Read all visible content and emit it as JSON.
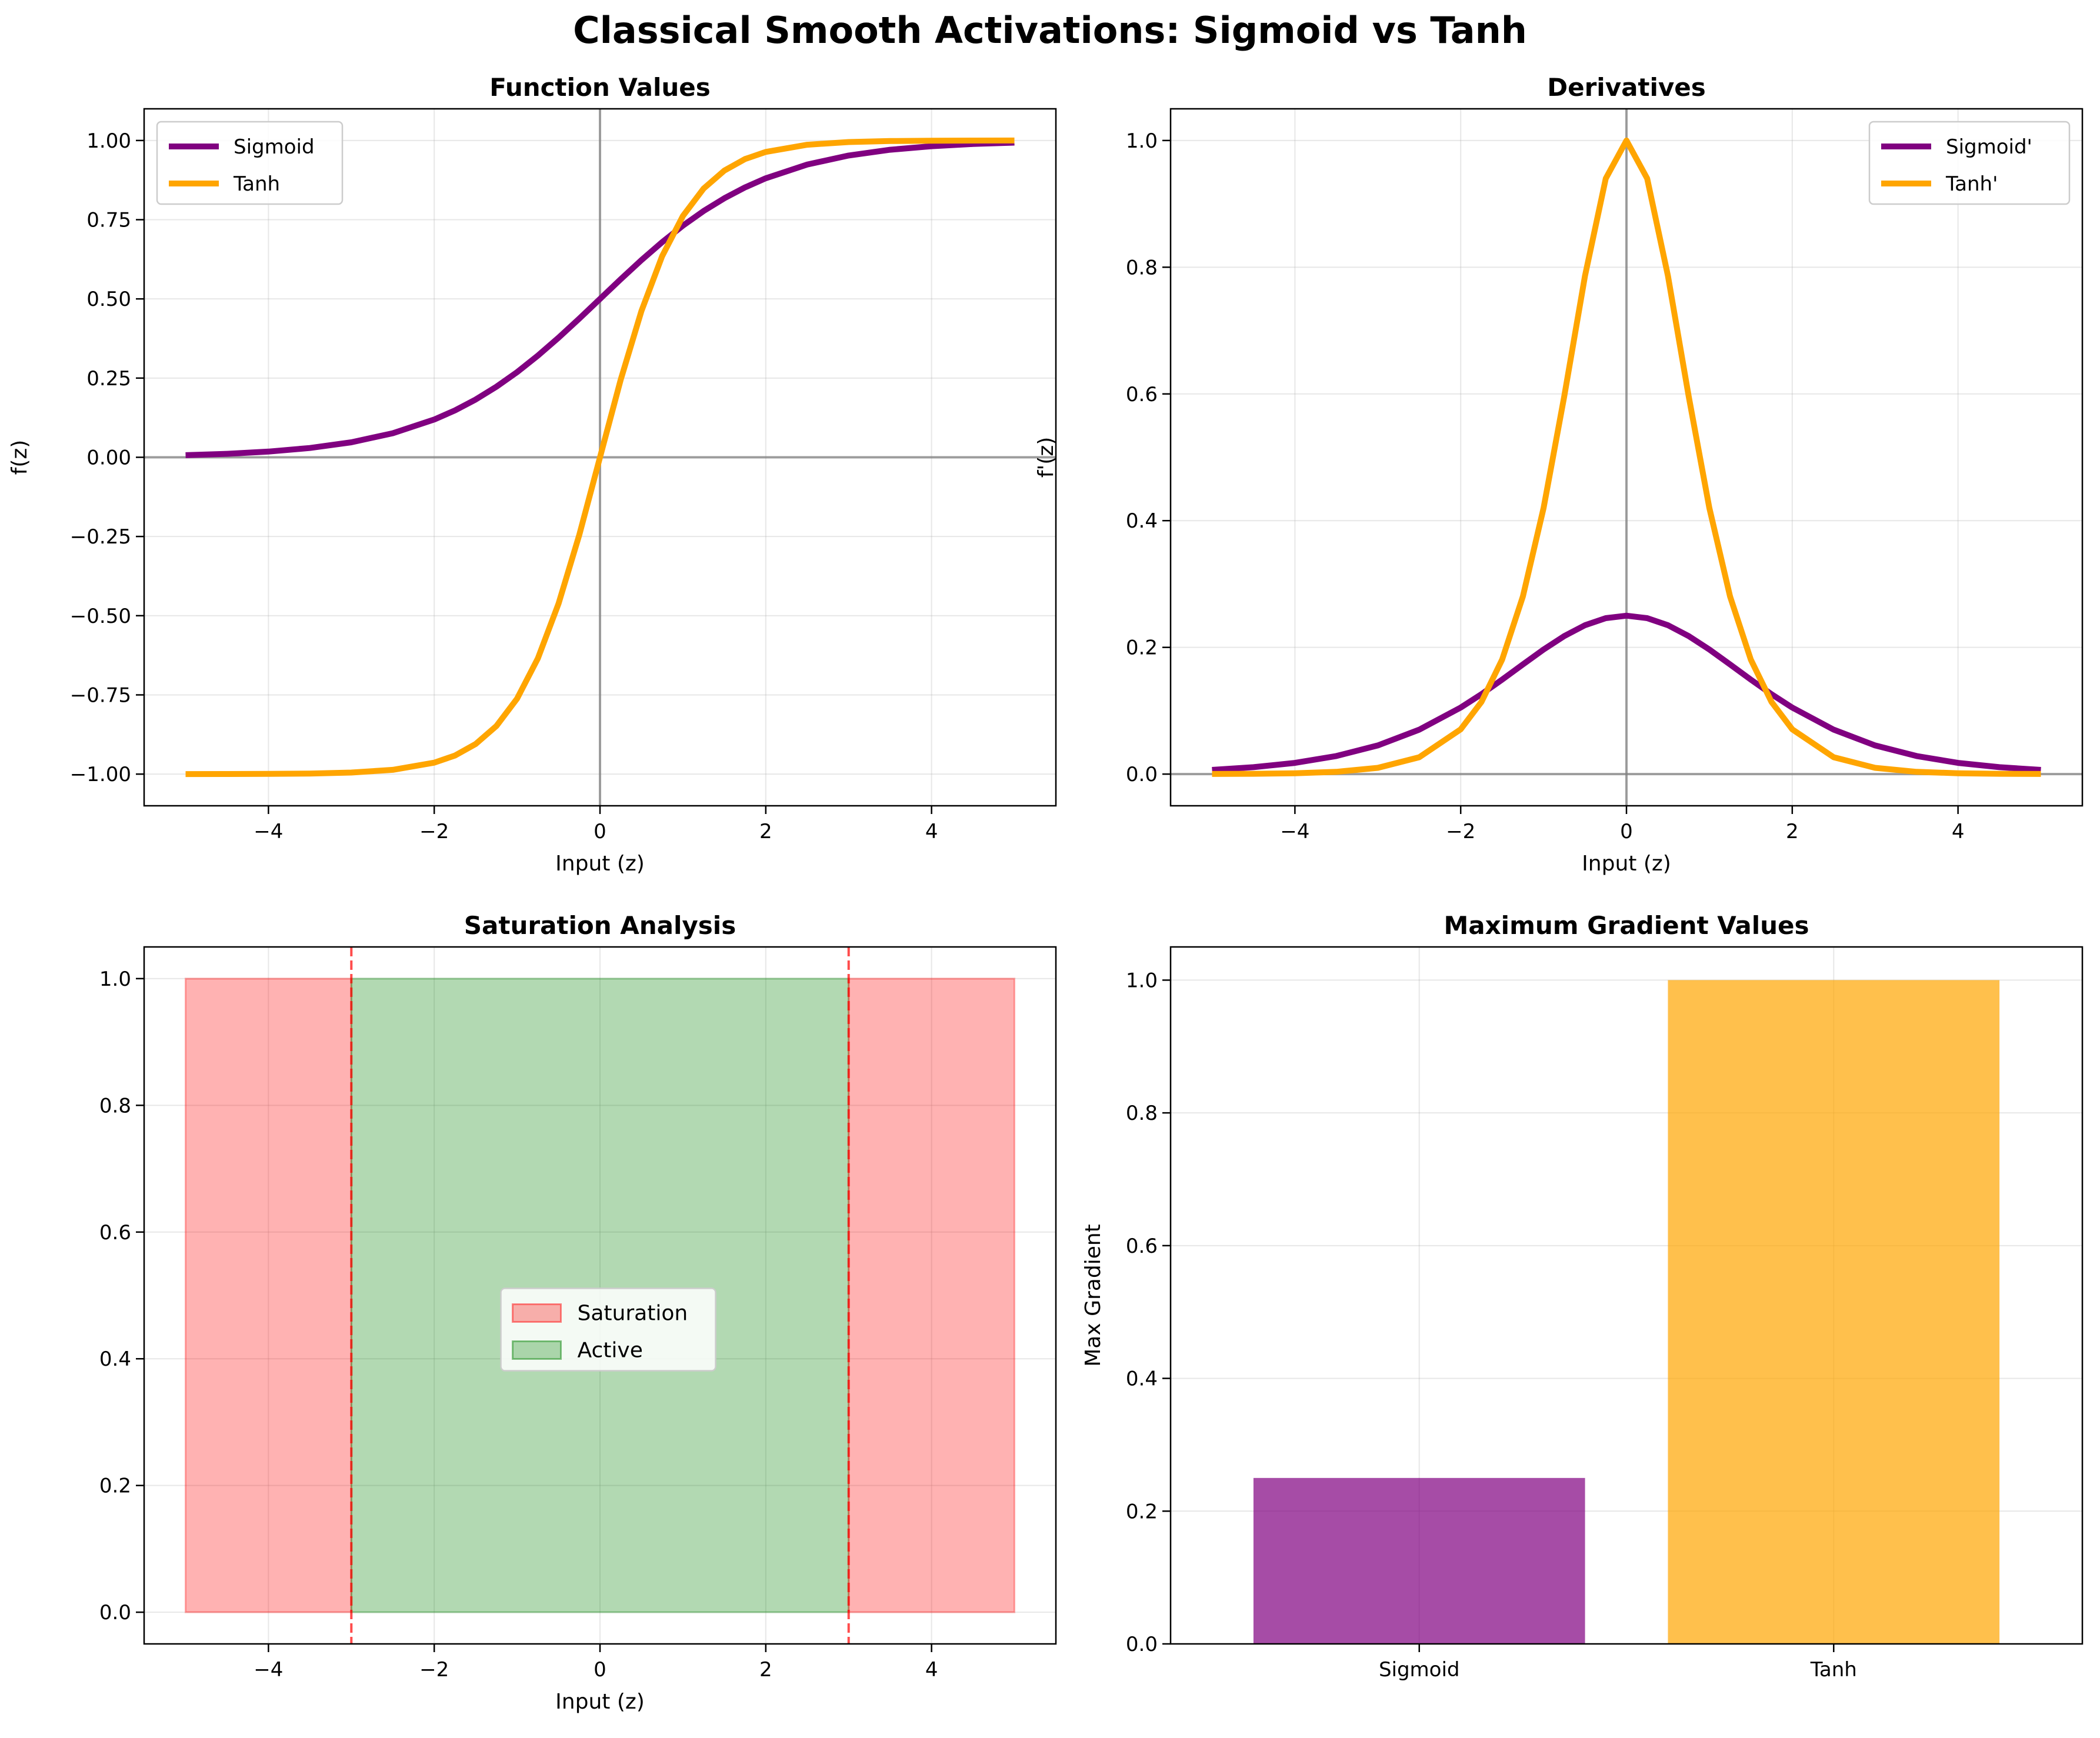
{
  "figure": {
    "suptitle": "Classical Smooth Activations: Sigmoid vs Tanh"
  },
  "colors": {
    "sigmoid": "#800080",
    "tanh": "#FFA500",
    "saturation": "#ff0000",
    "active": "#008000",
    "threshold": "#ff0000",
    "axis_zero": "#808080"
  },
  "chart_data": [
    {
      "id": "function-values",
      "type": "line",
      "title": "Function Values",
      "xlabel": "Input (z)",
      "ylabel": "f(z)",
      "xlim": [
        -5.5,
        5.5
      ],
      "ylim": [
        -1.1,
        1.1
      ],
      "xticks": [
        -4,
        -2,
        0,
        2,
        4
      ],
      "xtick_labels": [
        "−4",
        "−2",
        "0",
        "2",
        "4"
      ],
      "yticks": [
        -1.0,
        -0.75,
        -0.5,
        -0.25,
        0.0,
        0.25,
        0.5,
        0.75,
        1.0
      ],
      "ytick_labels": [
        "−1.00",
        "−0.75",
        "−0.50",
        "−0.25",
        "0.00",
        "0.25",
        "0.50",
        "0.75",
        "1.00"
      ],
      "grid": true,
      "legend_position": "upper left",
      "x": [
        -5,
        -4.5,
        -4,
        -3.5,
        -3,
        -2.5,
        -2,
        -1.75,
        -1.5,
        -1.25,
        -1,
        -0.75,
        -0.5,
        -0.25,
        0,
        0.25,
        0.5,
        0.75,
        1,
        1.25,
        1.5,
        1.75,
        2,
        2.5,
        3,
        3.5,
        4,
        4.5,
        5
      ],
      "series": [
        {
          "name": "Sigmoid",
          "color_key": "sigmoid",
          "values": [
            0.0067,
            0.011,
            0.018,
            0.0293,
            0.0474,
            0.0759,
            0.1192,
            0.148,
            0.1824,
            0.2227,
            0.2689,
            0.3208,
            0.3775,
            0.4378,
            0.5,
            0.5622,
            0.6225,
            0.6792,
            0.7311,
            0.7773,
            0.8176,
            0.852,
            0.8808,
            0.9241,
            0.9526,
            0.9707,
            0.982,
            0.989,
            0.9933
          ]
        },
        {
          "name": "Tanh",
          "color_key": "tanh",
          "values": [
            -0.9999,
            -0.9998,
            -0.9993,
            -0.9982,
            -0.9951,
            -0.9866,
            -0.964,
            -0.9414,
            -0.9051,
            -0.8483,
            -0.7616,
            -0.6351,
            -0.4621,
            -0.2449,
            0.0,
            0.2449,
            0.4621,
            0.6351,
            0.7616,
            0.8483,
            0.9051,
            0.9414,
            0.964,
            0.9866,
            0.9951,
            0.9982,
            0.9993,
            0.9998,
            0.9999
          ]
        }
      ]
    },
    {
      "id": "derivatives",
      "type": "line",
      "title": "Derivatives",
      "xlabel": "Input (z)",
      "ylabel": "f'(z)",
      "xlim": [
        -5.5,
        5.5
      ],
      "ylim": [
        -0.05,
        1.05
      ],
      "xticks": [
        -4,
        -2,
        0,
        2,
        4
      ],
      "xtick_labels": [
        "−4",
        "−2",
        "0",
        "2",
        "4"
      ],
      "yticks": [
        0.0,
        0.2,
        0.4,
        0.6,
        0.8,
        1.0
      ],
      "ytick_labels": [
        "0.0",
        "0.2",
        "0.4",
        "0.6",
        "0.8",
        "1.0"
      ],
      "grid": true,
      "legend_position": "upper right",
      "x": [
        -5,
        -4.5,
        -4,
        -3.5,
        -3,
        -2.5,
        -2,
        -1.75,
        -1.5,
        -1.25,
        -1,
        -0.75,
        -0.5,
        -0.25,
        0,
        0.25,
        0.5,
        0.75,
        1,
        1.25,
        1.5,
        1.75,
        2,
        2.5,
        3,
        3.5,
        4,
        4.5,
        5
      ],
      "series": [
        {
          "name": "Sigmoid'",
          "color_key": "sigmoid",
          "values": [
            0.0066,
            0.0109,
            0.0177,
            0.0285,
            0.0452,
            0.0701,
            0.105,
            0.1261,
            0.1491,
            0.1731,
            0.1966,
            0.2179,
            0.235,
            0.2461,
            0.25,
            0.2461,
            0.235,
            0.2179,
            0.1966,
            0.1731,
            0.1491,
            0.1261,
            0.105,
            0.0701,
            0.0452,
            0.0285,
            0.0177,
            0.0109,
            0.0066
          ]
        },
        {
          "name": "Tanh'",
          "color_key": "tanh",
          "values": [
            0.0002,
            0.0005,
            0.0013,
            0.0036,
            0.0099,
            0.0266,
            0.0707,
            0.1138,
            0.1807,
            0.2804,
            0.42,
            0.5966,
            0.7864,
            0.94,
            1.0,
            0.94,
            0.7864,
            0.5966,
            0.42,
            0.2804,
            0.1807,
            0.1138,
            0.0707,
            0.0266,
            0.0099,
            0.0036,
            0.0013,
            0.0005,
            0.0002
          ]
        }
      ]
    },
    {
      "id": "saturation-analysis",
      "type": "area",
      "title": "Saturation Analysis",
      "xlabel": "Input (z)",
      "ylabel": "",
      "xlim": [
        -5.5,
        5.5
      ],
      "ylim": [
        -0.05,
        1.05
      ],
      "xticks": [
        -4,
        -2,
        0,
        2,
        4
      ],
      "xtick_labels": [
        "−4",
        "−2",
        "0",
        "2",
        "4"
      ],
      "yticks": [
        0.0,
        0.2,
        0.4,
        0.6,
        0.8,
        1.0
      ],
      "ytick_labels": [
        "0.0",
        "0.2",
        "0.4",
        "0.6",
        "0.8",
        "1.0"
      ],
      "grid": true,
      "legend_position": "center",
      "regions": [
        {
          "name": "Saturation",
          "x": [
            -5,
            -3
          ],
          "y": [
            0,
            1
          ],
          "color_key": "saturation"
        },
        {
          "name": "Active",
          "x": [
            -3,
            3
          ],
          "y": [
            0,
            1
          ],
          "color_key": "active"
        },
        {
          "name": "",
          "x": [
            3,
            5
          ],
          "y": [
            0,
            1
          ],
          "color_key": "saturation"
        }
      ],
      "vlines": [
        -3,
        3
      ],
      "legend": [
        "Saturation",
        "Active"
      ]
    },
    {
      "id": "max-gradient",
      "type": "bar",
      "title": "Maximum Gradient Values",
      "xlabel": "",
      "ylabel": "Max Gradient",
      "categories": [
        "Sigmoid",
        "Tanh"
      ],
      "values": [
        0.25,
        1.0
      ],
      "color_keys": [
        "sigmoid",
        "tanh"
      ],
      "ylim": [
        0,
        1.05
      ],
      "yticks": [
        0.0,
        0.2,
        0.4,
        0.6,
        0.8,
        1.0
      ],
      "ytick_labels": [
        "0.0",
        "0.2",
        "0.4",
        "0.6",
        "0.8",
        "1.0"
      ],
      "grid": true
    }
  ]
}
